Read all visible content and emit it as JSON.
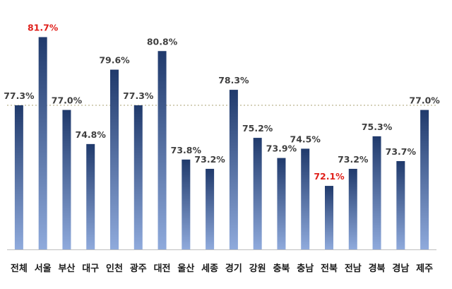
{
  "chart_data": {
    "type": "bar",
    "categories": [
      "전체",
      "서울",
      "부산",
      "대구",
      "인천",
      "광주",
      "대전",
      "울산",
      "세종",
      "경기",
      "강원",
      "충북",
      "충남",
      "전북",
      "전남",
      "경북",
      "경남",
      "제주"
    ],
    "values": [
      77.3,
      81.7,
      77.0,
      74.8,
      79.6,
      77.3,
      80.8,
      73.8,
      73.2,
      78.3,
      75.2,
      73.9,
      74.5,
      72.1,
      73.2,
      75.3,
      73.7,
      77.0
    ],
    "value_labels": [
      "77.3%",
      "81.7%",
      "77.0%",
      "74.8%",
      "79.6%",
      "77.3%",
      "80.8%",
      "73.8%",
      "73.2%",
      "78.3%",
      "75.2%",
      "73.9%",
      "74.5%",
      "72.1%",
      "73.2%",
      "75.3%",
      "73.7%",
      "77.0%"
    ],
    "highlighted": [
      "서울",
      "전북"
    ],
    "reference_line": {
      "value": 77.3,
      "style": "dashed"
    },
    "ylim": [
      68,
      83
    ],
    "title": "",
    "xlabel": "",
    "ylabel": "",
    "grid": false,
    "legend": "none",
    "colors": {
      "bar_top": "#203a6c",
      "bar_bottom": "#8faadc",
      "label_default": "#404040",
      "label_highlight": "#e0201b",
      "reference_line": "#a8a070",
      "axis": "#bfbfbf",
      "category_text": "#1a1a1a"
    }
  }
}
